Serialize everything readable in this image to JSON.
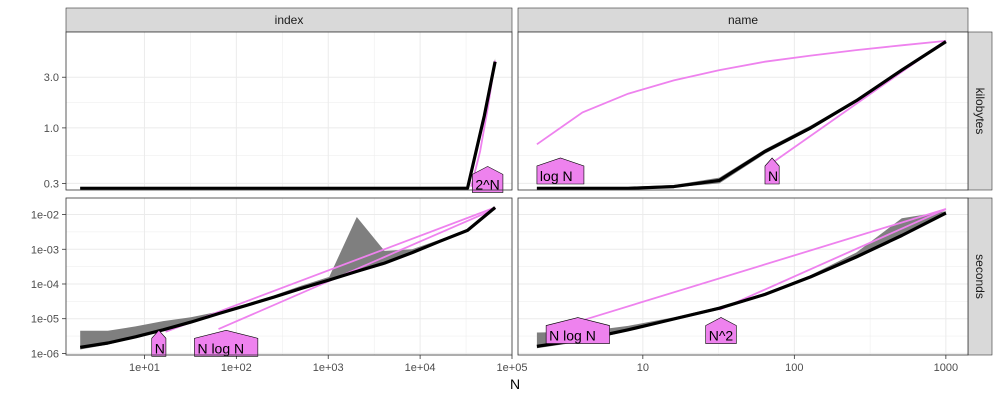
{
  "chart_data": {
    "type": "line",
    "xlabel": "N",
    "columns": [
      "index",
      "name"
    ],
    "rows": [
      "kilobytes",
      "seconds"
    ],
    "colors": {
      "measured": "#000000",
      "measured_band": "#7f7f7f",
      "reference": "#ee82ee",
      "strip_bg": "#d9d9d9",
      "grid": "#ebebeb"
    },
    "x_ticks": {
      "index": [
        "1e+01",
        "1e+02",
        "1e+03",
        "1e+04",
        "1e+05"
      ],
      "name": [
        "10",
        "100",
        "1000"
      ]
    },
    "y_ticks": {
      "kilobytes": [
        "0.3",
        "1.0",
        "3.0"
      ],
      "seconds": [
        "1e-06",
        "1e-05",
        "1e-04",
        "1e-03",
        "1e-02"
      ]
    },
    "panels": [
      {
        "column": "index",
        "row": "kilobytes",
        "xlim": [
          1.4,
          100000
        ],
        "ylim": [
          0.26,
          8.0
        ],
        "measured": {
          "x": [
            2,
            10,
            100,
            1000,
            10000,
            32768,
            50000,
            65536
          ],
          "y": [
            0.27,
            0.27,
            0.27,
            0.27,
            0.27,
            0.27,
            1.3,
            4.2
          ]
        },
        "measured_lower": [
          0.265,
          0.265,
          0.265,
          0.265,
          0.265,
          0.265,
          1.2,
          4.0
        ],
        "measured_upper": [
          0.278,
          0.278,
          0.278,
          0.278,
          0.278,
          0.28,
          1.45,
          4.5
        ],
        "references": [
          {
            "label": "2^N",
            "x": [
              36000,
              45000,
              55000,
              65536
            ],
            "y": [
              0.28,
              0.6,
              1.6,
              4.3
            ],
            "label_x": 37000,
            "label_y": 0.3
          }
        ]
      },
      {
        "column": "name",
        "row": "kilobytes",
        "xlim": [
          1.5,
          1400
        ],
        "ylim": [
          0.26,
          8.0
        ],
        "measured": {
          "x": [
            2,
            8,
            16,
            32,
            64,
            128,
            256,
            512,
            1000
          ],
          "y": [
            0.27,
            0.27,
            0.28,
            0.32,
            0.6,
            1.0,
            1.8,
            3.5,
            6.5
          ]
        },
        "measured_lower": [
          0.265,
          0.265,
          0.275,
          0.3,
          0.57,
          0.96,
          1.74,
          3.4,
          6.3
        ],
        "measured_upper": [
          0.278,
          0.278,
          0.29,
          0.34,
          0.63,
          1.05,
          1.86,
          3.6,
          6.7
        ],
        "references": [
          {
            "label": "log N",
            "x": [
              2,
              4,
              8,
              16,
              32,
              64,
              128,
              256,
              512,
              1000
            ],
            "y": [
              0.7,
              1.4,
              2.1,
              2.8,
              3.5,
              4.2,
              4.8,
              5.4,
              6.0,
              6.6
            ],
            "label_x": 2.0,
            "label_y": 0.36
          },
          {
            "label": "N",
            "x": [
              64,
              1000
            ],
            "y": [
              0.42,
              6.6
            ],
            "label_x": 64,
            "label_y": 0.36
          }
        ]
      },
      {
        "column": "index",
        "row": "seconds",
        "xlim": [
          1.4,
          100000
        ],
        "ylim": [
          9e-07,
          0.03
        ],
        "measured": {
          "x": [
            2,
            4,
            8,
            16,
            32,
            64,
            128,
            256,
            512,
            1024,
            2048,
            4096,
            8192,
            16384,
            32768,
            65536
          ],
          "y": [
            1.5e-06,
            2e-06,
            3e-06,
            4.8e-06,
            8e-06,
            1.4e-05,
            2.4e-05,
            4.2e-05,
            7.5e-05,
            0.00013,
            0.00023,
            0.0004,
            0.0008,
            0.0017,
            0.0035,
            0.016
          ]
        },
        "measured_lower": [
          1.3e-06,
          1.8e-06,
          2.8e-06,
          4.5e-06,
          7.5e-06,
          1.3e-05,
          2.2e-05,
          3.9e-05,
          7e-05,
          0.00012,
          0.00021,
          0.00037,
          0.00075,
          0.0016,
          0.0033,
          0.015
        ],
        "measured_upper": [
          4.5e-06,
          4.5e-06,
          6e-06,
          8.5e-06,
          1.1e-05,
          1.6e-05,
          2.7e-05,
          4.7e-05,
          9e-05,
          0.00016,
          0.0085,
          0.0009,
          0.001,
          0.0019,
          0.0038,
          0.017
        ],
        "references": [
          {
            "label": "N",
            "x": [
              17,
              65536
            ],
            "y": [
              4.2e-06,
              0.016
            ],
            "label_x": 12,
            "label_y": 1.5e-06
          },
          {
            "label": "N log N",
            "x": [
              64,
              65536
            ],
            "y": [
              5e-06,
              0.0146
            ],
            "label_x": 35,
            "label_y": 1.5e-06
          }
        ]
      },
      {
        "column": "name",
        "row": "seconds",
        "xlim": [
          1.5,
          1400
        ],
        "ylim": [
          9e-07,
          0.03
        ],
        "measured": {
          "x": [
            2,
            4,
            8,
            16,
            32,
            64,
            128,
            256,
            512,
            1000
          ],
          "y": [
            1.6e-06,
            2.5e-06,
            4.8e-06,
            9.8e-06,
            2e-05,
            5e-05,
            0.00016,
            0.0006,
            0.0025,
            0.011
          ]
        },
        "measured_lower": [
          1.4e-06,
          2.2e-06,
          4.4e-06,
          9e-06,
          1.8e-05,
          4.6e-05,
          0.00015,
          0.00055,
          0.0023,
          0.0105
        ],
        "measured_upper": [
          4e-06,
          4.2e-06,
          6.2e-06,
          1.1e-05,
          2.2e-05,
          5.5e-05,
          0.00018,
          0.0008,
          0.0078,
          0.0125
        ],
        "references": [
          {
            "label": "N log N",
            "x": [
              4,
              1000
            ],
            "y": [
              9e-06,
              0.0145
            ],
            "label_x": 2.3,
            "label_y": 3.5e-06
          },
          {
            "label": "N^2",
            "x": [
              32,
              1000
            ],
            "y": [
              1.8e-05,
              0.0145
            ],
            "label_x": 26,
            "label_y": 3.5e-06
          }
        ]
      }
    ]
  }
}
